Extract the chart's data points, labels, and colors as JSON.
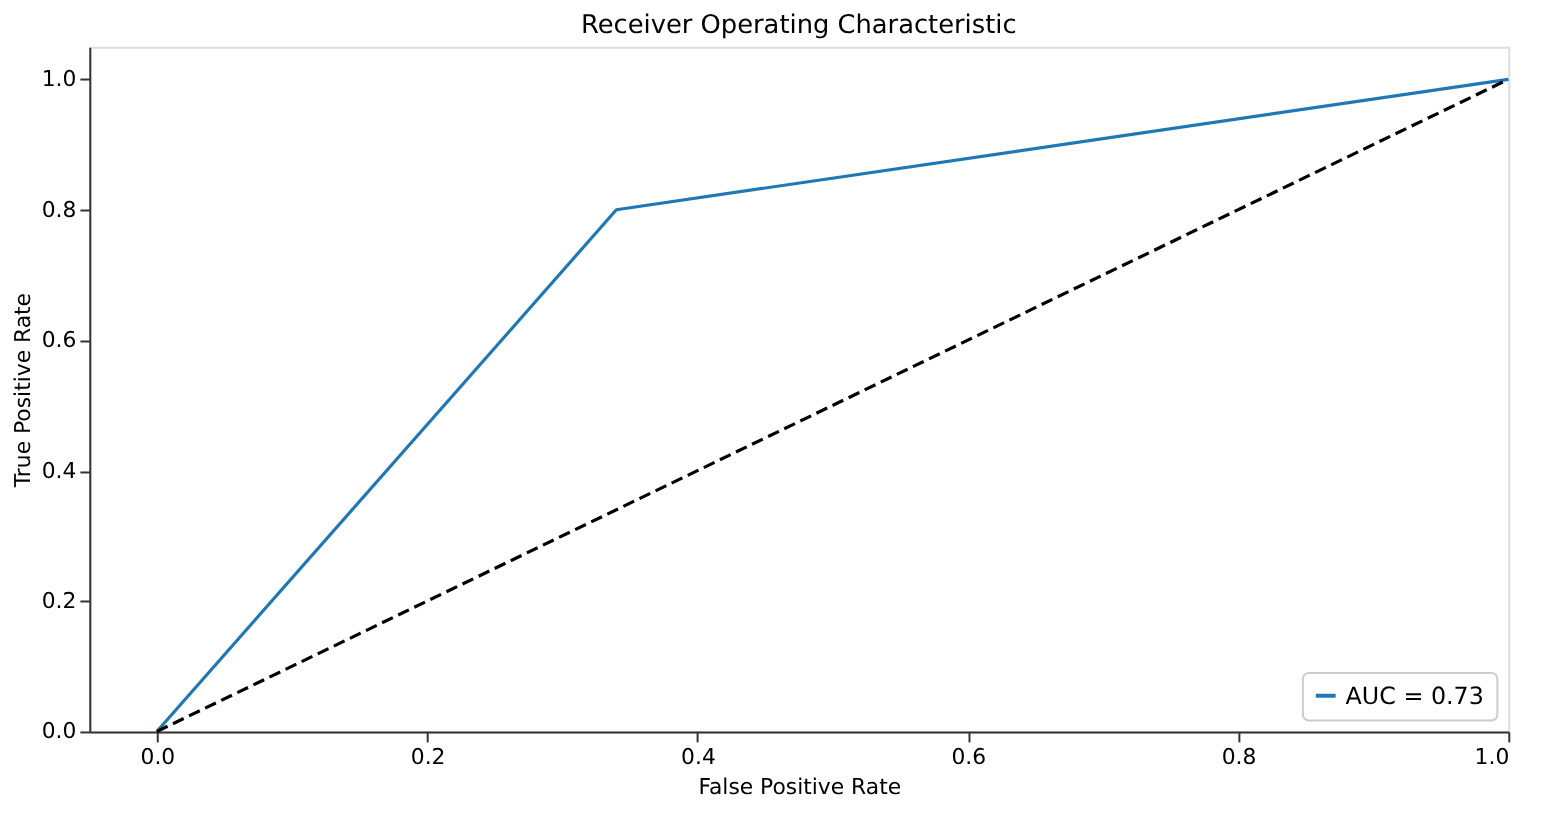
{
  "chart_data": {
    "type": "line",
    "title": "Receiver Operating Characteristic",
    "xlabel": "False Positive Rate",
    "ylabel": "True Positive Rate",
    "series": [
      {
        "name": "AUC = 0.73",
        "color": "#1f77b4",
        "x": [
          0,
          0.34,
          1
        ],
        "values": [
          0,
          0.8,
          1
        ]
      },
      {
        "color": "#000000",
        "x": [
          0,
          1
        ],
        "values": [
          0,
          1
        ],
        "line_style": "dashed"
      }
    ],
    "xlim": [
      -0.05,
      1.0
    ],
    "ylim": [
      0,
      1.05
    ],
    "xticks": [
      {
        "value": 0,
        "label": "0.0"
      },
      0.2,
      0.4,
      0.6,
      0.8,
      {
        "value": 1,
        "label": "1.0"
      }
    ],
    "yticks": [
      {
        "value": 0,
        "label": "0.0"
      },
      0.2,
      0.4,
      0.6,
      0.8,
      {
        "value": 1,
        "label": "1.0"
      }
    ],
    "legend": "bottom right",
    "grid": false,
    "marker": "none"
  }
}
